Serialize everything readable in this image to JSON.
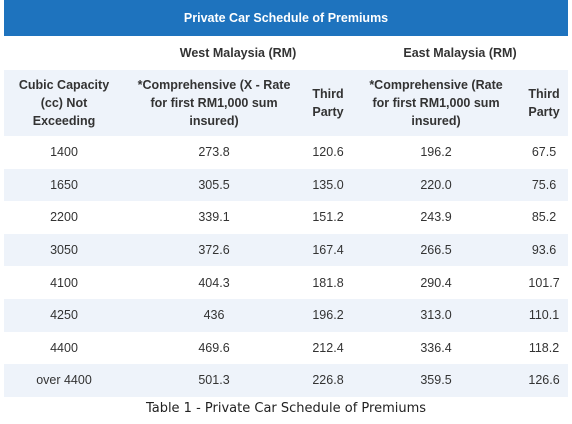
{
  "table": {
    "title": "Private Car Schedule of Premiums",
    "regions": {
      "west": "West Malaysia (RM)",
      "east": "East Malaysia (RM)"
    },
    "headers": {
      "capacity": "Cubic Capacity (cc) Not Exceeding",
      "west_comprehensive": "*Comprehensive  (X - Rate for first RM1,000 sum insured)",
      "west_third_party": "Third Party",
      "east_comprehensive": "*Comprehensive  (Rate for first RM1,000 sum insured)",
      "east_third_party": "Third Party"
    },
    "rows": [
      {
        "cc": "1400",
        "west_comp": "273.8",
        "west_tp": "120.6",
        "east_comp": "196.2",
        "east_tp": "67.5"
      },
      {
        "cc": "1650",
        "west_comp": "305.5",
        "west_tp": "135.0",
        "east_comp": "220.0",
        "east_tp": "75.6"
      },
      {
        "cc": "2200",
        "west_comp": "339.1",
        "west_tp": "151.2",
        "east_comp": "243.9",
        "east_tp": "85.2"
      },
      {
        "cc": "3050",
        "west_comp": "372.6",
        "west_tp": "167.4",
        "east_comp": "266.5",
        "east_tp": "93.6"
      },
      {
        "cc": "4100",
        "west_comp": "404.3",
        "west_tp": "181.8",
        "east_comp": "290.4",
        "east_tp": "101.7"
      },
      {
        "cc": "4250",
        "west_comp": "436",
        "west_tp": "196.2",
        "east_comp": "313.0",
        "east_tp": "110.1"
      },
      {
        "cc": "4400",
        "west_comp": "469.6",
        "west_tp": "212.4",
        "east_comp": "336.4",
        "east_tp": "118.2"
      },
      {
        "cc": "over 4400",
        "west_comp": "501.3",
        "west_tp": "226.8",
        "east_comp": "359.5",
        "east_tp": "126.6"
      }
    ]
  },
  "caption": "Table 1 - Private Car Schedule of Premiums",
  "colors": {
    "title_bar": "#1e73be",
    "stripe": "#eef3fa"
  }
}
